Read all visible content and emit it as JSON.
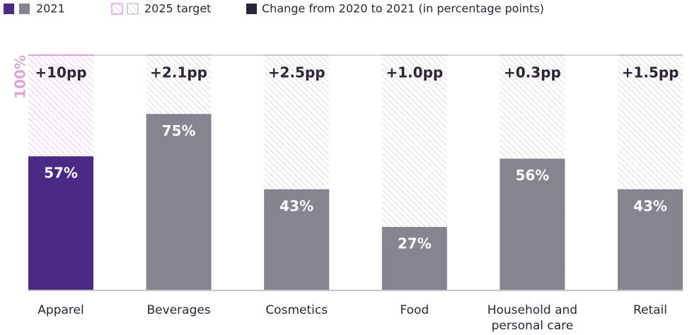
{
  "chart_data": {
    "type": "bar",
    "categories": [
      "Apparel",
      "Beverages",
      "Cosmetics",
      "Food",
      "Household and personal care",
      "Retail"
    ],
    "series": [
      {
        "name": "2021",
        "values": [
          57,
          75,
          43,
          27,
          56,
          43
        ],
        "value_labels": [
          "57%",
          "75%",
          "43%",
          "27%",
          "56%",
          "43%"
        ],
        "colors": [
          "#4b2a86",
          "#85848f",
          "#85848f",
          "#85848f",
          "#85848f",
          "#85848f"
        ]
      },
      {
        "name": "2025 target",
        "values": [
          100,
          100,
          100,
          100,
          100,
          100
        ],
        "hatched": true,
        "colors": [
          "#d9a6d6",
          "#c4c4ca",
          "#c4c4ca",
          "#c4c4ca",
          "#c4c4ca",
          "#c4c4ca"
        ]
      },
      {
        "name": "Change from 2020 to 2021 (in percentage points)",
        "values": [
          10,
          2.1,
          2.5,
          1.0,
          0.3,
          1.5
        ],
        "value_labels": [
          "+10pp",
          "+2.1pp",
          "+2.5pp",
          "+1.0pp",
          "+0.3pp",
          "+1.5pp"
        ],
        "color": "#2b2537"
      }
    ],
    "ylim": [
      0,
      100
    ],
    "yticks": [
      {
        "value": 100,
        "label": "100%"
      }
    ],
    "ytick_color": "#d9a6d6"
  }
}
